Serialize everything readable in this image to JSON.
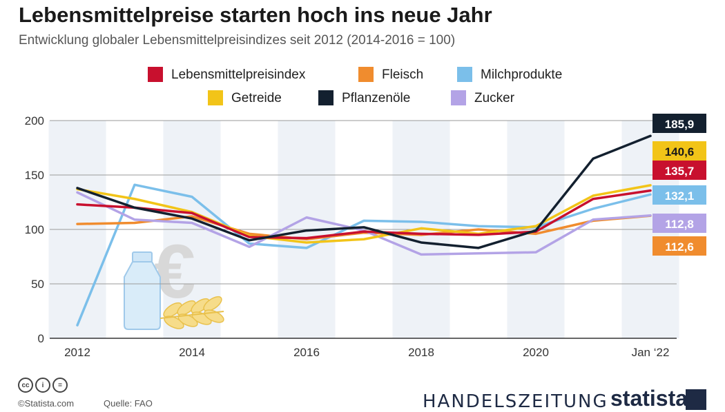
{
  "header": {
    "title": "Lebensmittelpreise starten hoch ins neue Jahr",
    "subtitle": "Entwicklung globaler Lebensmittelpreisindizes seit 2012 (2014-2016 = 100)"
  },
  "chart_data": {
    "type": "line",
    "title": "Lebensmittelpreise starten hoch ins neue Jahr",
    "subtitle": "Entwicklung globaler Lebensmittelpreisindizes seit 2012 (2014-2016 = 100)",
    "x": [
      "2012",
      "2013",
      "2014",
      "2015",
      "2016",
      "2017",
      "2018",
      "2019",
      "2020",
      "2021",
      "Jan '22"
    ],
    "x_tick_labels": [
      "2012",
      "2014",
      "2016",
      "2018",
      "2020",
      "Jan ‘22"
    ],
    "y_ticks": [
      0,
      50,
      100,
      150,
      200
    ],
    "ylim": [
      0,
      200
    ],
    "grid": true,
    "legend_position": "top",
    "series": [
      {
        "name": "Lebensmittelpreisindex",
        "color": "#c8102e",
        "values": [
          123,
          120,
          115,
          93,
          92,
          98,
          96,
          95,
          98,
          128,
          135.7
        ],
        "end_label": "135,7"
      },
      {
        "name": "Fleisch",
        "color": "#f08c2e",
        "values": [
          105,
          106,
          112,
          96,
          91,
          97,
          95,
          100,
          96,
          108,
          112.6
        ],
        "end_label": "112,6"
      },
      {
        "name": "Milchprodukte",
        "color": "#7bbfea",
        "values": [
          12,
          141,
          130,
          87,
          83,
          108,
          107,
          103,
          102,
          119,
          132.1
        ],
        "end_label": "132,1"
      },
      {
        "name": "Getreide",
        "color": "#f2c418",
        "values": [
          137,
          128,
          116,
          94,
          88,
          91,
          101,
          96,
          103,
          131,
          140.6
        ],
        "end_label": "140,6"
      },
      {
        "name": "Pflanzenöle",
        "color": "#13202f",
        "values": [
          138,
          120,
          110,
          90,
          99,
          102,
          88,
          83,
          99,
          165,
          185.9
        ],
        "end_label": "185,9"
      },
      {
        "name": "Zucker",
        "color": "#b3a3e6",
        "values": [
          134,
          109,
          106,
          84,
          111,
          99,
          77,
          78,
          79,
          109,
          112.8
        ],
        "end_label": "112,8"
      }
    ]
  },
  "legend": [
    {
      "label": "Lebensmittelpreisindex",
      "color": "#c8102e"
    },
    {
      "label": "Fleisch",
      "color": "#f08c2e"
    },
    {
      "label": "Milchprodukte",
      "color": "#7bbfea"
    },
    {
      "label": "Getreide",
      "color": "#f2c418"
    },
    {
      "label": "Pflanzenöle",
      "color": "#13202f"
    },
    {
      "label": "Zucker",
      "color": "#b3a3e6"
    }
  ],
  "footer": {
    "copyright": "©Statista.com",
    "source": "Quelle: FAO",
    "publisher": "HANDELSZEITUNG",
    "brand": "statista"
  }
}
